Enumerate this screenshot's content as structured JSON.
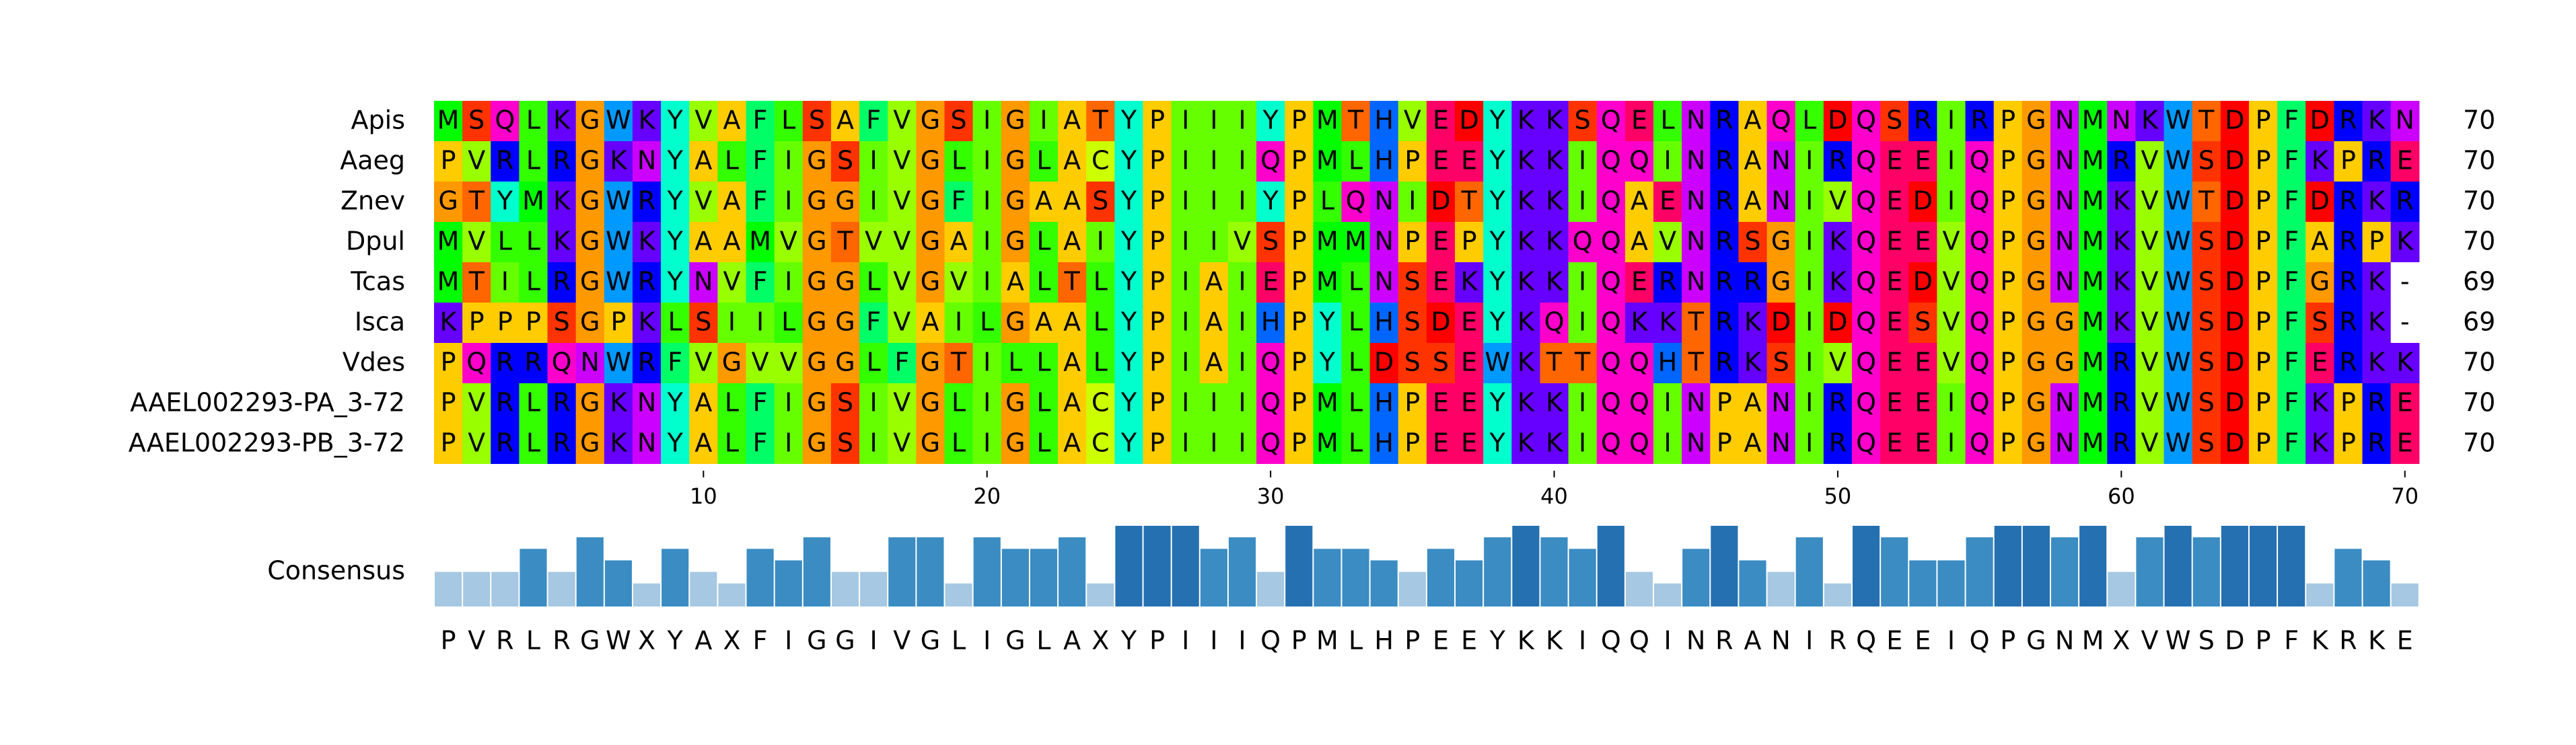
{
  "sequences": [
    {
      "name": "Apis",
      "residues": "MSQLKGWKYVAFLSAFVGSIGIATYPIIIYPMTHVEDYKKSQELNRAQLDQSRIRPGNMNKWTDPFDRKN",
      "count": "70"
    },
    {
      "name": "Aaeg",
      "residues": "PVRLRGKNYALFIGSIVGLIGLACYPIIIQPMLHPEEYKKIQQINRANIRQEEIQPGNMRVWSDPFKPRE",
      "count": "70"
    },
    {
      "name": "Znev",
      "residues": "GTYMKGWRYVAFIGGIVGFIGAASYPIIIYPLQNIDTYKKIQAENRANIVQEDIQPGNMKVWTDPFDRKR",
      "count": "70"
    },
    {
      "name": "Dpul",
      "residues": "MVLLKGWKYAAMVGTVVGAIGLAIYPIIVSPMMNPEPYKKQQAVNRSGIKQEEVQPGNMKVWSDPFARPK",
      "count": "70"
    },
    {
      "name": "Tcas",
      "residues": "MTILRGWRYNVFIGGLVGVIALTLYPIAIEPMLNSEKYKKIQERNRRGIKQEDVQPGNMKVWSDPFGRK-",
      "count": "69"
    },
    {
      "name": "Isca",
      "residues": "KPPPSGPKLSIILGGFVAILGAALYPIAIHPYLHSDEYKQIQKKTRKDIDQESVQPGGMKVWSDPFSRK-",
      "count": "69"
    },
    {
      "name": "Vdes",
      "residues": "PQRRQNWRFVGVVGGLFGTILLALYPIAIQPYLDSSEWKTTQQHTRKSIVQEEVQPGGMRVWSDPFERKK",
      "count": "70"
    },
    {
      "name": "AAEL002293-PA_3-72",
      "residues": "PVRLRGKNYALFIGSIVGLIGLACYPIIIQPMLHPEEYKKIQQINPANIRQEEIQPGNMRVWSDPFKPRE",
      "count": "70"
    },
    {
      "name": "AAEL002293-PB_3-72",
      "residues": "PVRLRGKNYALFIGSIVGLIGLACYPIIIQPMLHPEEYKKIQQINPANIRQEEIQPGNMRVWSDPFKPRE",
      "count": "70"
    }
  ],
  "x_ticks": [
    "10",
    "20",
    "30",
    "40",
    "50",
    "60",
    "70"
  ],
  "consensus": {
    "label": "Consensus",
    "sequence": "PVRLRGWXYAXFIGGIVGLIGLAXYPIIIQPMLHPEEYKKIQQINRANIRQEEIQPGNMXVWSDPFKRKE",
    "conservation": [
      3,
      3,
      3,
      5,
      3,
      6,
      4,
      2,
      5,
      3,
      2,
      5,
      4,
      6,
      3,
      3,
      6,
      6,
      2,
      6,
      5,
      5,
      6,
      2,
      7,
      7,
      7,
      5,
      6,
      3,
      7,
      5,
      5,
      4,
      3,
      5,
      4,
      6,
      7,
      6,
      5,
      7,
      3,
      2,
      5,
      7,
      4,
      3,
      6,
      2,
      7,
      6,
      4,
      4,
      6,
      7,
      7,
      6,
      7,
      3,
      6,
      7,
      6,
      7,
      7,
      7,
      2,
      5,
      4,
      2
    ],
    "max_level": 7
  },
  "residue_colors": {
    "A": "#ffcc00",
    "R": "#0000ff",
    "N": "#cc00ff",
    "D": "#ff0000",
    "C": "#ccff00",
    "Q": "#ff00cc",
    "E": "#ff0066",
    "G": "#ff9900",
    "H": "#0066ff",
    "I": "#66ff00",
    "L": "#33ff00",
    "K": "#6600ff",
    "M": "#00ff00",
    "F": "#00ff66",
    "P": "#ffcc00",
    "S": "#ff3300",
    "T": "#ff6600",
    "W": "#0099ff",
    "Y": "#00ffcc",
    "V": "#99ff00",
    "X": "#ffffff",
    "-": "#ffffff"
  },
  "conservation_colors": [
    "#a6c8e2",
    "#3a8cc2",
    "#2570b0"
  ]
}
